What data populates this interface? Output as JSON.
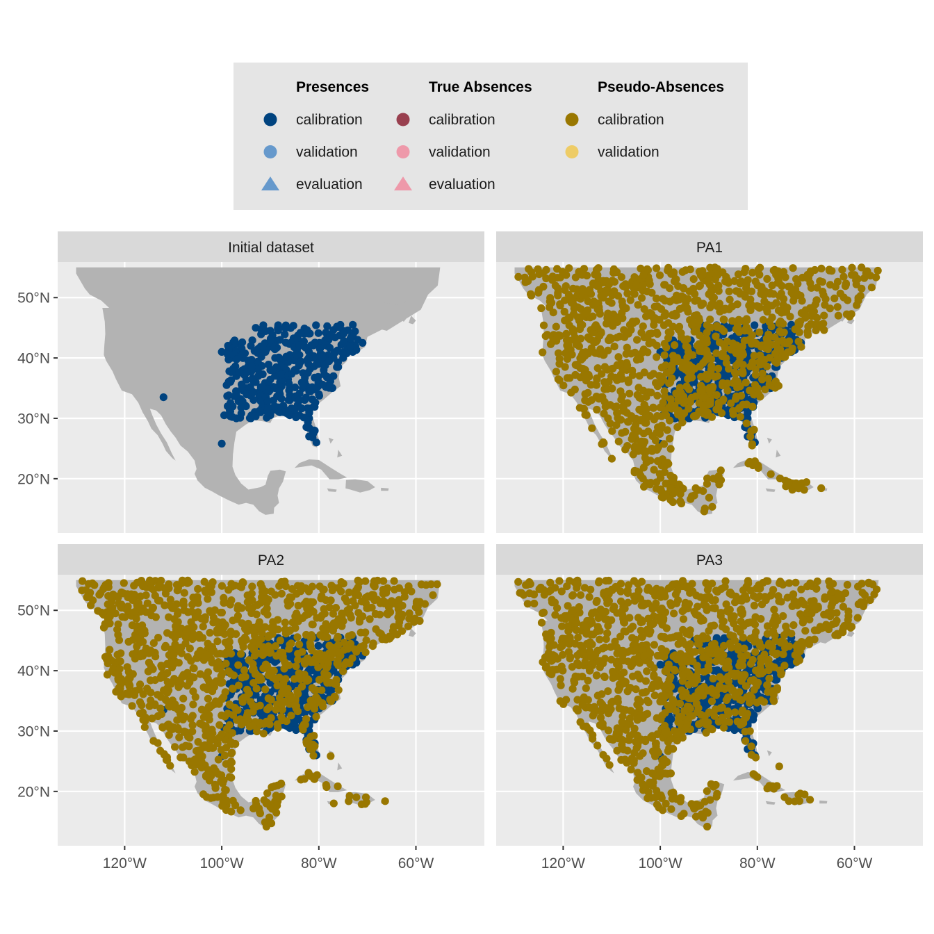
{
  "colors": {
    "presence_calibration": "#00437f",
    "presence_validation": "#6699cc",
    "presence_evaluation": "#6699cc",
    "absence_calibration": "#99404f",
    "absence_validation": "#ee99aa",
    "absence_evaluation": "#ee99aa",
    "pseudo_calibration": "#997700",
    "pseudo_validation": "#eecc66",
    "land": "#b3b3b3",
    "panel_bg": "#ebebeb",
    "strip_bg": "#d9d9d9",
    "legend_bg": "#e5e5e5",
    "grid": "#ffffff"
  },
  "legend": {
    "groups": [
      {
        "title": "Presences",
        "items": [
          {
            "label": "calibration",
            "shape": "circle",
            "color_key": "presence_calibration"
          },
          {
            "label": "validation",
            "shape": "circle",
            "color_key": "presence_validation"
          },
          {
            "label": "evaluation",
            "shape": "triangle",
            "color_key": "presence_evaluation"
          }
        ]
      },
      {
        "title": "True Absences",
        "items": [
          {
            "label": "calibration",
            "shape": "circle",
            "color_key": "absence_calibration"
          },
          {
            "label": "validation",
            "shape": "circle",
            "color_key": "absence_validation"
          },
          {
            "label": "evaluation",
            "shape": "triangle",
            "color_key": "absence_evaluation"
          }
        ]
      },
      {
        "title": "Pseudo-Absences",
        "items": [
          {
            "label": "calibration",
            "shape": "circle",
            "color_key": "pseudo_calibration"
          },
          {
            "label": "validation",
            "shape": "circle",
            "color_key": "pseudo_validation"
          }
        ]
      }
    ]
  },
  "axes": {
    "x_ticks": [
      {
        "value": -120,
        "label": "120°W"
      },
      {
        "value": -100,
        "label": "100°W"
      },
      {
        "value": -80,
        "label": "80°W"
      },
      {
        "value": -60,
        "label": "60°W"
      }
    ],
    "y_ticks": [
      {
        "value": 20,
        "label": "20°N"
      },
      {
        "value": 30,
        "label": "30°N"
      },
      {
        "value": 40,
        "label": "40°N"
      },
      {
        "value": 50,
        "label": "50°N"
      }
    ],
    "xlim": [
      -133.8,
      -45.9
    ],
    "ylim": [
      11.0,
      55.9
    ]
  },
  "panels": [
    {
      "title": "Initial dataset",
      "pseudo_count": 0,
      "seed": 11
    },
    {
      "title": "PA1",
      "pseudo_count": 1200,
      "seed": 23
    },
    {
      "title": "PA2",
      "pseudo_count": 1200,
      "seed": 37
    },
    {
      "title": "PA3",
      "pseudo_count": 1200,
      "seed": 53
    }
  ],
  "chart_data": {
    "type": "scatter",
    "facets": [
      "Initial dataset",
      "PA1",
      "PA2",
      "PA3"
    ],
    "presence_points": [
      [
        -112,
        33.5
      ],
      [
        -100,
        25.8
      ],
      [
        -100,
        41
      ],
      [
        -99.5,
        30.5
      ],
      [
        -99,
        35.5
      ],
      [
        -97,
        30
      ],
      [
        -96,
        33
      ],
      [
        -95,
        38
      ],
      [
        -93,
        45
      ],
      [
        -90,
        44.5
      ],
      [
        -88,
        43
      ],
      [
        -85,
        42
      ],
      [
        -83,
        44
      ],
      [
        -80,
        42
      ],
      [
        -78,
        43
      ],
      [
        -75,
        44.5
      ],
      [
        -73,
        45.5
      ],
      [
        -72,
        43
      ],
      [
        -71,
        42.5
      ],
      [
        -73,
        41
      ],
      [
        -75,
        40
      ],
      [
        -76,
        38.5
      ],
      [
        -77,
        37
      ],
      [
        -78,
        35.5
      ],
      [
        -80,
        34
      ],
      [
        -81,
        32
      ],
      [
        -82,
        30
      ],
      [
        -81,
        28
      ],
      [
        -80.5,
        26
      ],
      [
        -82,
        27
      ],
      [
        -84,
        30.5
      ],
      [
        -86,
        30.5
      ],
      [
        -88,
        31
      ],
      [
        -90,
        30.5
      ],
      [
        -92,
        31
      ],
      [
        -94,
        30
      ],
      [
        -95,
        35
      ],
      [
        -93,
        39
      ],
      [
        -91,
        41
      ],
      [
        -89,
        40
      ],
      [
        -87,
        39
      ],
      [
        -85,
        38
      ],
      [
        -83,
        36
      ],
      [
        -86,
        35
      ],
      [
        -89,
        35
      ],
      [
        -91,
        35
      ],
      [
        -93,
        36
      ],
      [
        -97,
        37
      ],
      [
        -98,
        40
      ],
      [
        -96,
        41.5
      ],
      [
        -94,
        42
      ],
      [
        -90,
        38
      ],
      [
        -88,
        36
      ],
      [
        -84,
        33
      ],
      [
        -82,
        34.5
      ],
      [
        -86,
        33
      ],
      [
        -79,
        38
      ],
      [
        -77,
        40
      ],
      [
        -80,
        36
      ],
      [
        -84,
        40.5
      ],
      [
        -88,
        34
      ],
      [
        -92,
        33
      ],
      [
        -95,
        32
      ],
      [
        -97,
        34
      ],
      [
        -82,
        40
      ]
    ]
  }
}
